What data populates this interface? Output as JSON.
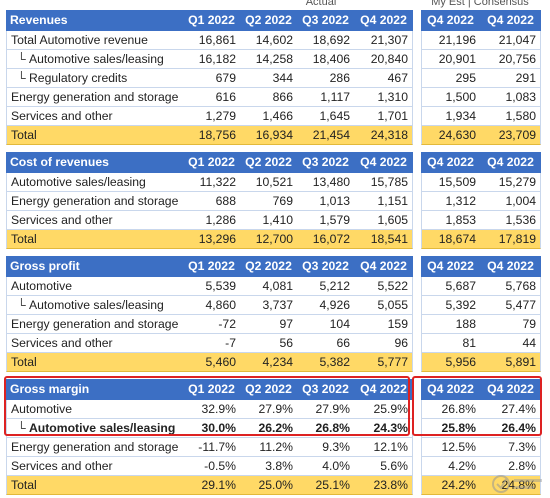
{
  "top_headers": {
    "actual": "Actual",
    "my_est_consensus": "My Est | Consensus"
  },
  "revenues": {
    "header": [
      "Revenues",
      "Q1 2022",
      "Q2 2022",
      "Q3 2022",
      "Q4 2022",
      "Q4 2022",
      "Q4 2022"
    ],
    "rows": [
      {
        "label": "Total Automotive revenue",
        "values": [
          "16,861",
          "14,602",
          "18,692",
          "21,307",
          "21,196",
          "21,047"
        ]
      },
      {
        "label": "Automotive sales/leasing",
        "values": [
          "16,182",
          "14,258",
          "18,406",
          "20,840",
          "20,901",
          "20,756"
        ]
      },
      {
        "label": "Regulatory credits",
        "values": [
          "679",
          "344",
          "286",
          "467",
          "295",
          "291"
        ]
      },
      {
        "label": "Energy generation and storage",
        "values": [
          "616",
          "866",
          "1,117",
          "1,310",
          "1,500",
          "1,083"
        ]
      },
      {
        "label": "Services and other",
        "values": [
          "1,279",
          "1,466",
          "1,645",
          "1,701",
          "1,934",
          "1,580"
        ]
      },
      {
        "label": "Total",
        "values": [
          "18,756",
          "16,934",
          "21,454",
          "24,318",
          "24,630",
          "23,709"
        ]
      }
    ]
  },
  "cost_of_revenues": {
    "header": [
      "Cost of revenues",
      "Q1 2022",
      "Q2 2022",
      "Q3 2022",
      "Q4 2022",
      "Q4 2022",
      "Q4 2022"
    ],
    "rows": [
      {
        "label": "Automotive sales/leasing",
        "values": [
          "11,322",
          "10,521",
          "13,480",
          "15,785",
          "15,509",
          "15,279"
        ]
      },
      {
        "label": "Energy generation and storage",
        "values": [
          "688",
          "769",
          "1,013",
          "1,151",
          "1,312",
          "1,004"
        ]
      },
      {
        "label": "Services and other",
        "values": [
          "1,286",
          "1,410",
          "1,579",
          "1,605",
          "1,853",
          "1,536"
        ]
      },
      {
        "label": "Total",
        "values": [
          "13,296",
          "12,700",
          "16,072",
          "18,541",
          "18,674",
          "17,819"
        ]
      }
    ]
  },
  "gross_profit": {
    "header": [
      "Gross profit",
      "Q1 2022",
      "Q2 2022",
      "Q3 2022",
      "Q4 2022",
      "Q4 2022",
      "Q4 2022"
    ],
    "rows": [
      {
        "label": "Automotive",
        "values": [
          "5,539",
          "4,081",
          "5,212",
          "5,522",
          "5,687",
          "5,768"
        ]
      },
      {
        "label": "Automotive sales/leasing",
        "values": [
          "4,860",
          "3,737",
          "4,926",
          "5,055",
          "5,392",
          "5,477"
        ]
      },
      {
        "label": "Energy generation and storage",
        "values": [
          "-72",
          "97",
          "104",
          "159",
          "188",
          "79"
        ]
      },
      {
        "label": "Services and other",
        "values": [
          "-7",
          "56",
          "66",
          "96",
          "81",
          "44"
        ]
      },
      {
        "label": "Total",
        "values": [
          "5,460",
          "4,234",
          "5,382",
          "5,777",
          "5,956",
          "5,891"
        ]
      }
    ]
  },
  "gross_margin": {
    "header": [
      "Gross margin",
      "Q1 2022",
      "Q2 2022",
      "Q3 2022",
      "Q4 2022",
      "Q4 2022",
      "Q4 2022"
    ],
    "rows": [
      {
        "label": "Automotive",
        "values": [
          "32.9%",
          "27.9%",
          "27.9%",
          "25.9%",
          "26.8%",
          "27.4%"
        ]
      },
      {
        "label": "Automotive sales/leasing",
        "values": [
          "30.0%",
          "26.2%",
          "26.8%",
          "24.3%",
          "25.8%",
          "26.4%"
        ]
      },
      {
        "label": "Energy generation and storage",
        "values": [
          "-11.7%",
          "11.2%",
          "9.3%",
          "12.1%",
          "12.5%",
          "7.3%"
        ]
      },
      {
        "label": "Services and other",
        "values": [
          "-0.5%",
          "3.8%",
          "4.0%",
          "5.6%",
          "4.2%",
          "2.8%"
        ]
      },
      {
        "label": "Total",
        "values": [
          "29.1%",
          "25.0%",
          "25.1%",
          "23.8%",
          "24.2%",
          "24.8%"
        ]
      }
    ]
  },
  "colors": {
    "header_bg": "#3c6fc4",
    "total_bg": "#ffd966",
    "highlight": "#dd2222"
  }
}
